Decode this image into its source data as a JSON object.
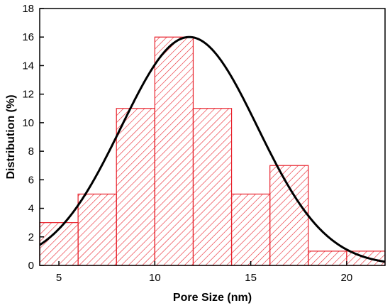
{
  "chart_data": {
    "type": "bar",
    "title": "",
    "xlabel": "Pore Size (nm)",
    "ylabel": "Distribution (%)",
    "xlim": [
      4,
      22
    ],
    "ylim": [
      0,
      18
    ],
    "xticks": [
      5,
      10,
      15,
      20
    ],
    "yticks": [
      0,
      2,
      4,
      6,
      8,
      10,
      12,
      14,
      16,
      18
    ],
    "bins": [
      {
        "start": 4,
        "end": 6,
        "value": 3
      },
      {
        "start": 6,
        "end": 8,
        "value": 5
      },
      {
        "start": 8,
        "end": 10,
        "value": 11
      },
      {
        "start": 10,
        "end": 12,
        "value": 16
      },
      {
        "start": 12,
        "end": 14,
        "value": 11
      },
      {
        "start": 14,
        "end": 16,
        "value": 5
      },
      {
        "start": 16,
        "end": 18,
        "value": 7
      },
      {
        "start": 18,
        "end": 20,
        "value": 1
      },
      {
        "start": 20,
        "end": 22,
        "value": 1
      }
    ],
    "fit_curve": {
      "type": "gaussian",
      "peak_x": 11.8,
      "peak_y": 16,
      "sigma": 3.55
    },
    "bar_color": "#e8202a",
    "bar_pattern": "diagonal-hatch",
    "curve_color": "#000000",
    "grid": false,
    "legend": "none"
  }
}
